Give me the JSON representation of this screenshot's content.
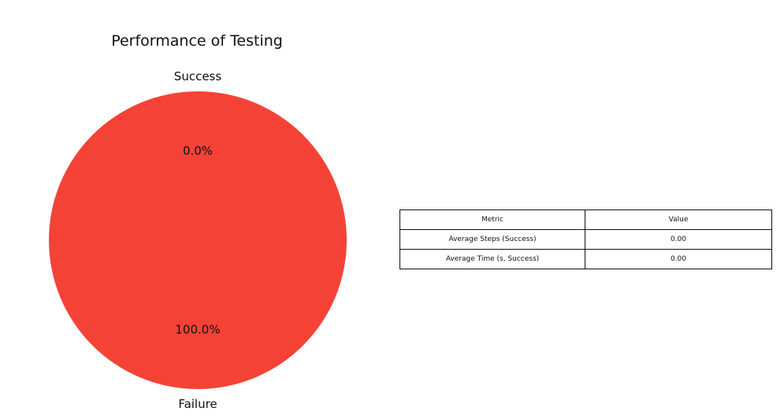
{
  "chart_data": [
    {
      "type": "pie",
      "title": "Performance of Testing",
      "slices": [
        {
          "label": "Success",
          "value": 0.0,
          "pct_label": "0.0%",
          "color": "#4CAF50"
        },
        {
          "label": "Failure",
          "value": 100.0,
          "pct_label": "100.0%",
          "color": "#F44336"
        }
      ],
      "start_angle": 90,
      "legend": "none"
    },
    {
      "type": "table",
      "columns": [
        "Metric",
        "Value"
      ],
      "rows": [
        [
          "Average Steps (Success)",
          "0.00"
        ],
        [
          "Average Time (s, Success)",
          "0.00"
        ]
      ]
    }
  ]
}
